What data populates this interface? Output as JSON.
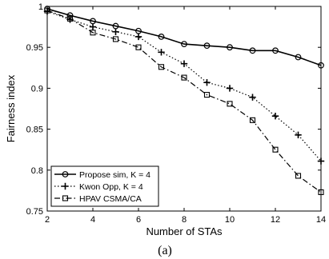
{
  "chart_data": {
    "type": "line",
    "xlabel": "Number of STAs",
    "ylabel": "Fairness index",
    "xlim": [
      2,
      14
    ],
    "ylim": [
      0.75,
      1.0
    ],
    "xticks": [
      2,
      4,
      6,
      8,
      10,
      12,
      14
    ],
    "yticks": [
      0.75,
      0.8,
      0.85,
      0.9,
      0.95,
      1
    ],
    "ytick_labels": [
      "0.75",
      "0.8",
      "0.85",
      "0.9",
      "0.95",
      "1"
    ],
    "grid": false,
    "legend_position": "bottom-left",
    "x": [
      2,
      3,
      4,
      5,
      6,
      7,
      8,
      9,
      10,
      11,
      12,
      13,
      14
    ],
    "series": [
      {
        "name": "Propose sim, K = 4",
        "marker": "circle",
        "line_style": "solid",
        "values": [
          0.997,
          0.989,
          0.982,
          0.976,
          0.97,
          0.963,
          0.954,
          0.952,
          0.95,
          0.946,
          0.946,
          0.938,
          0.928
        ]
      },
      {
        "name": "Kwon Opp, K = 4",
        "marker": "plus",
        "line_style": "dotted",
        "values": [
          0.994,
          0.984,
          0.975,
          0.969,
          0.963,
          0.944,
          0.93,
          0.907,
          0.9,
          0.889,
          0.866,
          0.843,
          0.811
        ]
      },
      {
        "name": "HPAV CSMA/CA",
        "marker": "square",
        "line_style": "dashdot",
        "values": [
          0.995,
          0.985,
          0.968,
          0.96,
          0.95,
          0.926,
          0.913,
          0.892,
          0.881,
          0.861,
          0.825,
          0.793,
          0.773
        ]
      }
    ]
  },
  "caption": "(a)"
}
